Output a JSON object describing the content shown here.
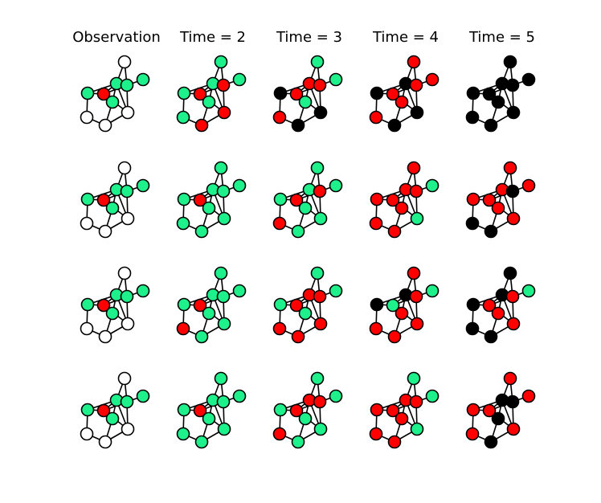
{
  "columns": [
    "Observation",
    "Time = 2",
    "Time = 3",
    "Time = 4",
    "Time = 5"
  ],
  "colors": {
    "unobserved": "#ffffff",
    "susceptible": "#1ef08c",
    "infected": "#ff0000",
    "removed": "#000000"
  },
  "grid": [
    [
      [
        "u",
        "g",
        "g",
        "g",
        "g",
        "r",
        "g",
        "u",
        "u",
        "u"
      ],
      [
        "g",
        "g",
        "g",
        "r",
        "g",
        "r",
        "g",
        "r",
        "g",
        "r"
      ],
      [
        "g",
        "g",
        "r",
        "r",
        "b",
        "r",
        "g",
        "b",
        "r",
        "b"
      ],
      [
        "r",
        "r",
        "b",
        "r",
        "b",
        "r",
        "r",
        "b",
        "r",
        "b"
      ],
      [
        "b",
        "b",
        "b",
        "b",
        "b",
        "b",
        "b",
        "b",
        "b",
        "b"
      ]
    ],
    [
      [
        "u",
        "g",
        "g",
        "g",
        "g",
        "r",
        "g",
        "u",
        "u",
        "u"
      ],
      [
        "g",
        "g",
        "g",
        "g",
        "g",
        "r",
        "g",
        "g",
        "g",
        "g"
      ],
      [
        "g",
        "g",
        "g",
        "r",
        "g",
        "r",
        "g",
        "g",
        "r",
        "g"
      ],
      [
        "r",
        "g",
        "r",
        "r",
        "r",
        "r",
        "r",
        "g",
        "r",
        "r"
      ],
      [
        "r",
        "r",
        "r",
        "b",
        "r",
        "r",
        "r",
        "r",
        "b",
        "b"
      ]
    ],
    [
      [
        "u",
        "g",
        "g",
        "g",
        "g",
        "r",
        "g",
        "u",
        "u",
        "u"
      ],
      [
        "g",
        "g",
        "g",
        "g",
        "g",
        "r",
        "g",
        "g",
        "r",
        "g"
      ],
      [
        "g",
        "g",
        "r",
        "r",
        "g",
        "r",
        "g",
        "r",
        "r",
        "r"
      ],
      [
        "r",
        "g",
        "b",
        "r",
        "b",
        "g",
        "r",
        "r",
        "r",
        "r"
      ],
      [
        "b",
        "g",
        "b",
        "r",
        "b",
        "r",
        "r",
        "r",
        "b",
        "b"
      ]
    ],
    [
      [
        "u",
        "g",
        "g",
        "g",
        "g",
        "r",
        "g",
        "u",
        "u",
        "u"
      ],
      [
        "g",
        "g",
        "g",
        "g",
        "g",
        "r",
        "g",
        "g",
        "g",
        "g"
      ],
      [
        "g",
        "g",
        "r",
        "r",
        "g",
        "r",
        "g",
        "g",
        "r",
        "g"
      ],
      [
        "g",
        "g",
        "r",
        "r",
        "r",
        "r",
        "r",
        "g",
        "r",
        "r"
      ],
      [
        "r",
        "r",
        "b",
        "b",
        "r",
        "r",
        "b",
        "r",
        "r",
        "b"
      ]
    ]
  ]
}
